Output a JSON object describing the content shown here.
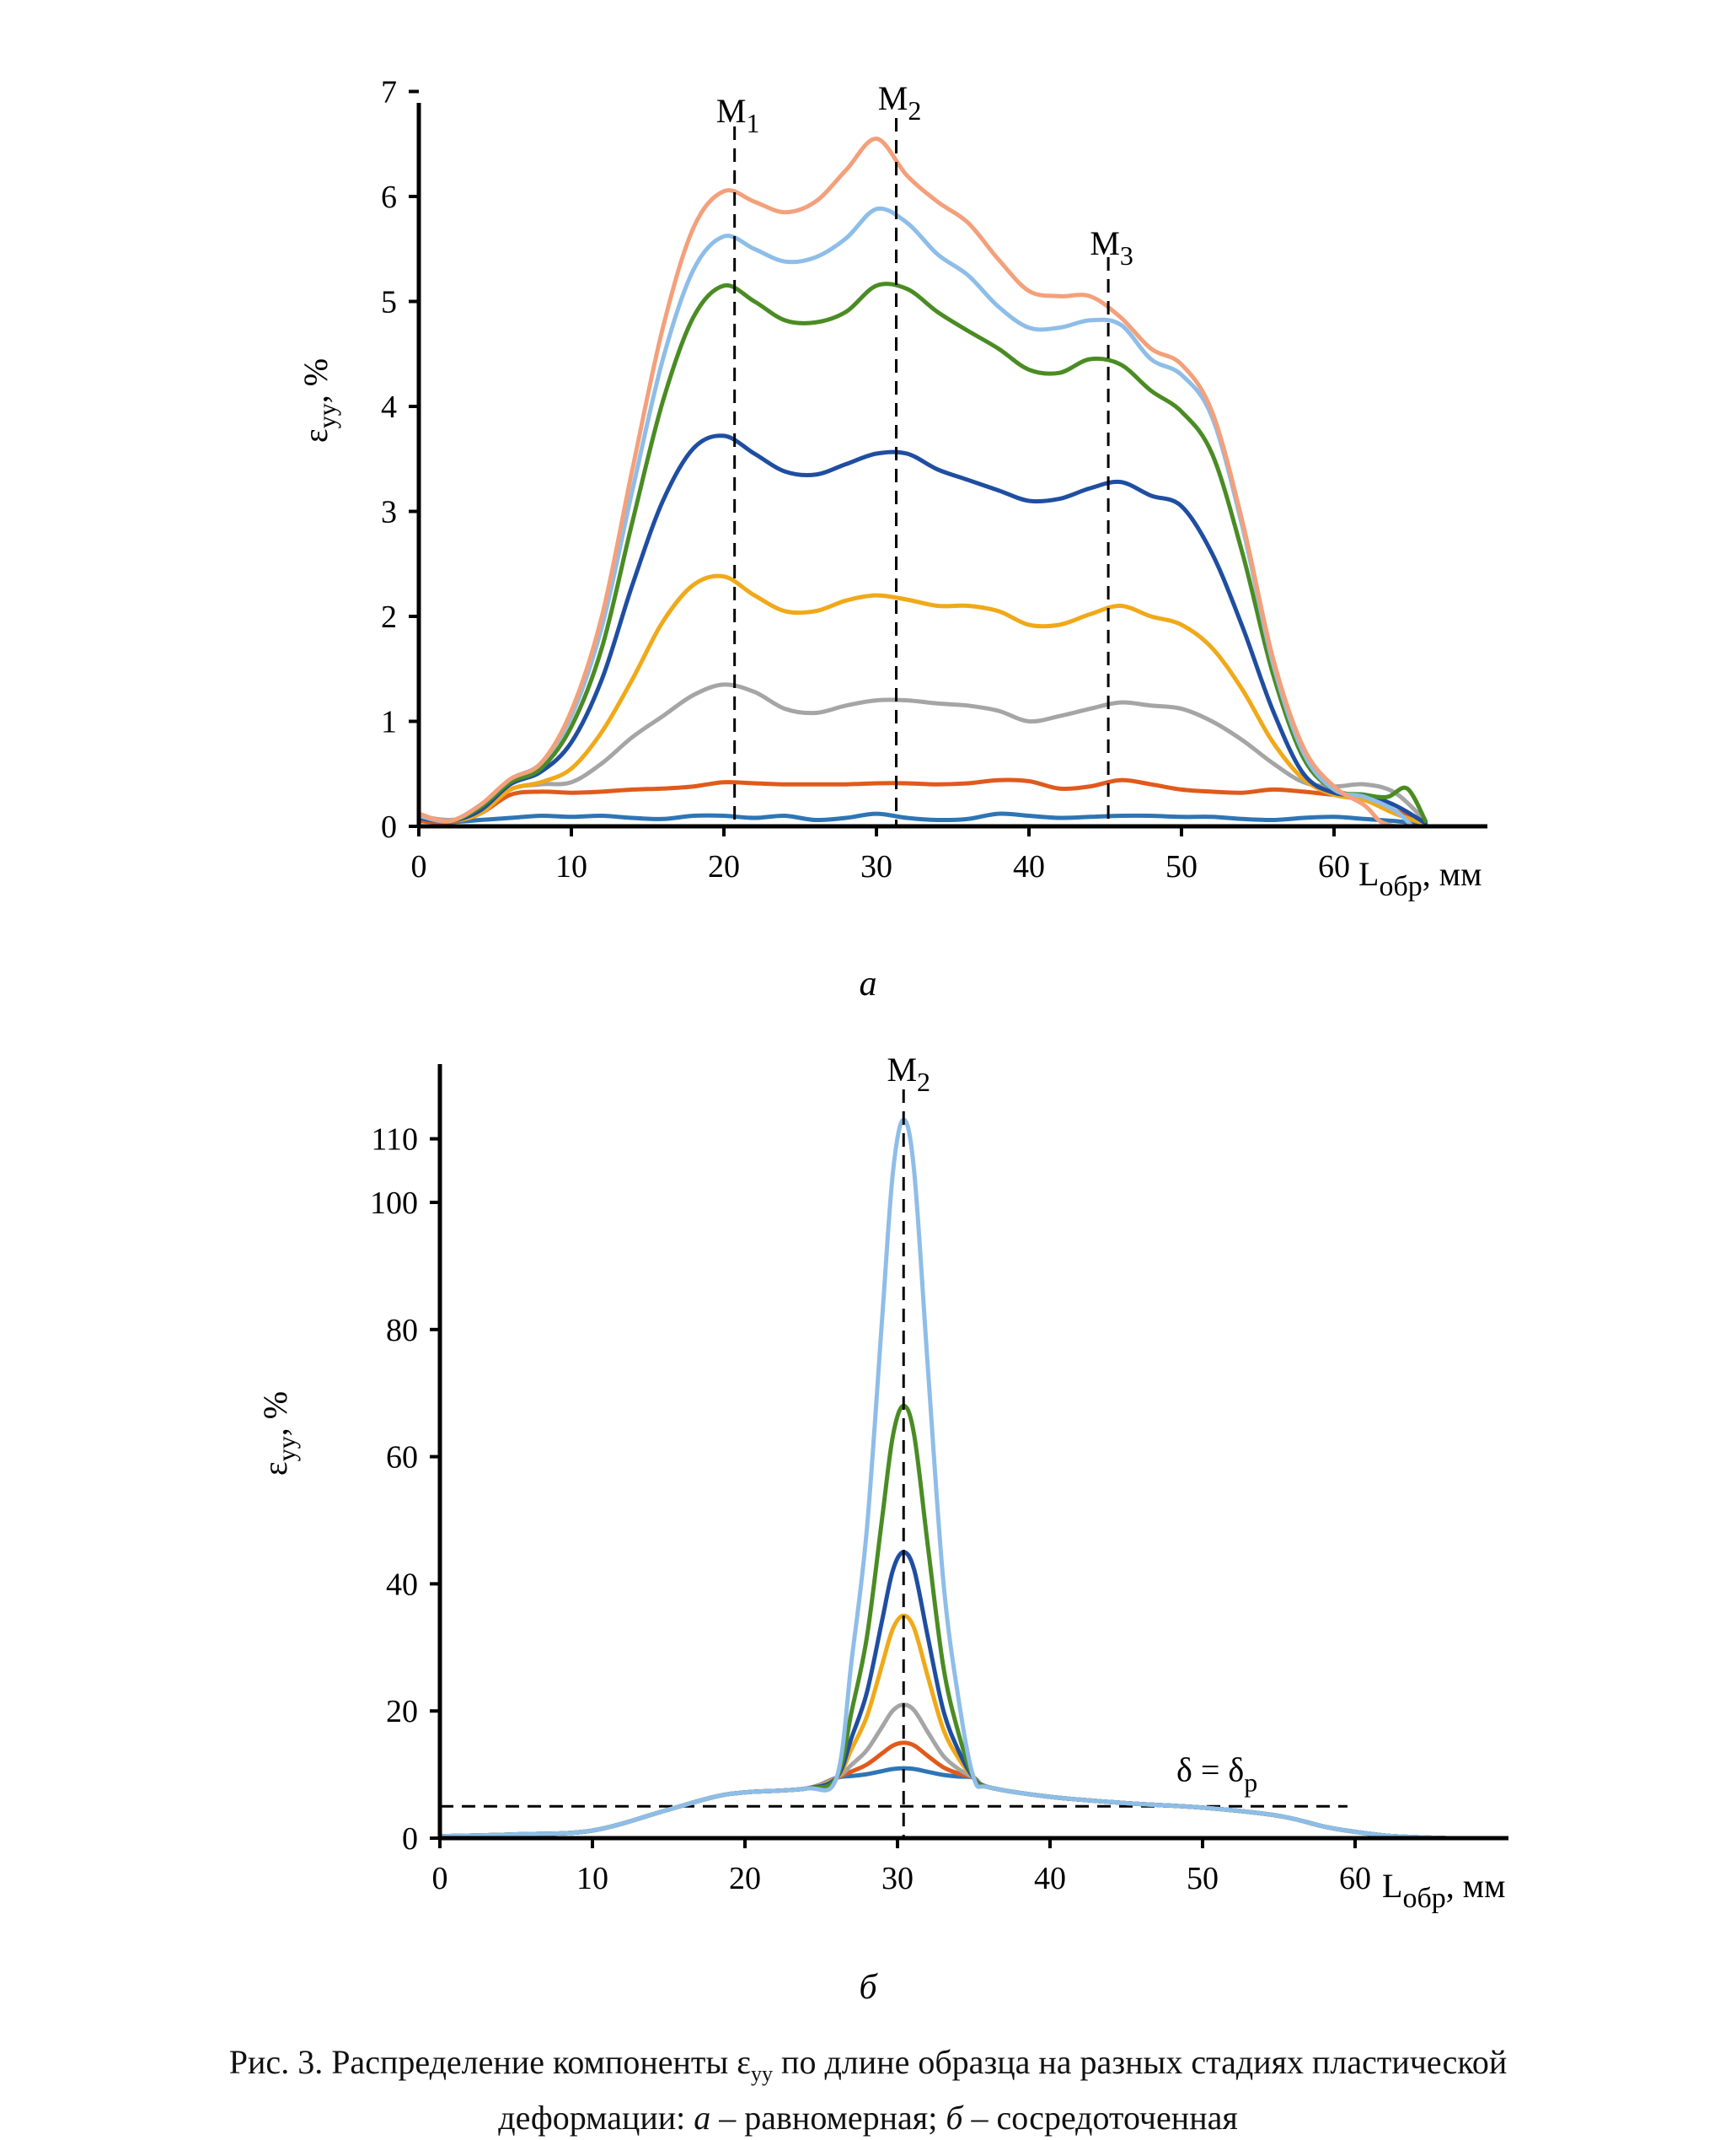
{
  "figure": {
    "panels": [
      "а",
      "б"
    ],
    "caption": {
      "part1": "Рис. 3. Распределение компоненты ε",
      "part1_sub": "yy",
      "part2": " по длине образца на разных стадиях пластической",
      "line2_a": "деформации: ",
      "line2_b": "а",
      "line2_c": " – равномерная; ",
      "line2_d": "б",
      "line2_e": " – сосредоточенная"
    }
  },
  "chart_data": [
    {
      "type": "line",
      "panel": "а",
      "xlabel": "L",
      "xlabel_sub": "обр",
      "xlabel_unit": ", мм",
      "ylabel": "ε",
      "ylabel_sub": "yy",
      "ylabel_unit": ", %",
      "xlim": [
        0,
        70
      ],
      "ylim": [
        0,
        7
      ],
      "xticks": [
        0,
        10,
        20,
        30,
        40,
        50,
        60
      ],
      "yticks": [
        0,
        1,
        2,
        3,
        4,
        5,
        6,
        7
      ],
      "grid": false,
      "legend": "none",
      "markers": [
        {
          "label": "M",
          "sub": "1",
          "x": 20.7
        },
        {
          "label": "M",
          "sub": "2",
          "x": 31.3
        },
        {
          "label": "M",
          "sub": "3",
          "x": 45.2
        }
      ],
      "series": [
        {
          "color": "#2e75b6",
          "x": [
            0,
            2,
            4,
            6,
            8,
            10,
            12,
            14,
            16,
            18,
            20,
            22,
            24,
            26,
            28,
            30,
            32,
            34,
            36,
            38,
            40,
            42,
            44,
            46,
            48,
            50,
            52,
            54,
            56,
            58,
            60,
            62,
            64,
            66
          ],
          "y": [
            0.05,
            0.04,
            0.06,
            0.08,
            0.1,
            0.09,
            0.1,
            0.08,
            0.07,
            0.1,
            0.1,
            0.08,
            0.1,
            0.06,
            0.08,
            0.12,
            0.08,
            0.06,
            0.07,
            0.12,
            0.1,
            0.08,
            0.09,
            0.1,
            0.1,
            0.09,
            0.09,
            0.07,
            0.06,
            0.08,
            0.09,
            0.07,
            0.05,
            0.02
          ]
        },
        {
          "color": "#e05a1c",
          "x": [
            0,
            2,
            4,
            6,
            8,
            10,
            12,
            14,
            16,
            18,
            20,
            22,
            24,
            26,
            28,
            30,
            32,
            34,
            36,
            38,
            40,
            42,
            44,
            46,
            48,
            50,
            52,
            54,
            56,
            58,
            60,
            62,
            64,
            66
          ],
          "y": [
            0.05,
            0.04,
            0.12,
            0.3,
            0.33,
            0.32,
            0.33,
            0.35,
            0.36,
            0.38,
            0.42,
            0.41,
            0.4,
            0.4,
            0.4,
            0.41,
            0.41,
            0.4,
            0.41,
            0.44,
            0.43,
            0.36,
            0.38,
            0.44,
            0.4,
            0.35,
            0.33,
            0.32,
            0.35,
            0.33,
            0.3,
            0.28,
            0.15,
            0.03
          ]
        },
        {
          "color": "#a5a5a5",
          "x": [
            0,
            2,
            4,
            6,
            8,
            10,
            12,
            14,
            16,
            18,
            20,
            22,
            24,
            26,
            28,
            30,
            32,
            34,
            36,
            38,
            40,
            42,
            44,
            46,
            48,
            50,
            52,
            54,
            56,
            58,
            60,
            62,
            64,
            66
          ],
          "y": [
            0.1,
            0.06,
            0.12,
            0.35,
            0.4,
            0.42,
            0.6,
            0.85,
            1.05,
            1.25,
            1.35,
            1.28,
            1.12,
            1.08,
            1.15,
            1.2,
            1.2,
            1.17,
            1.15,
            1.1,
            1.0,
            1.05,
            1.12,
            1.18,
            1.15,
            1.12,
            1.0,
            0.82,
            0.6,
            0.42,
            0.38,
            0.4,
            0.32,
            0.05
          ]
        },
        {
          "color": "#f0a918",
          "x": [
            0,
            2,
            4,
            6,
            8,
            10,
            12,
            14,
            16,
            18,
            20,
            22,
            24,
            26,
            28,
            30,
            32,
            34,
            36,
            38,
            40,
            42,
            44,
            46,
            48,
            50,
            52,
            54,
            56,
            58,
            60,
            62,
            64,
            66
          ],
          "y": [
            0.08,
            0.05,
            0.12,
            0.35,
            0.42,
            0.55,
            0.9,
            1.4,
            1.95,
            2.3,
            2.38,
            2.2,
            2.05,
            2.05,
            2.15,
            2.2,
            2.16,
            2.1,
            2.1,
            2.05,
            1.92,
            1.92,
            2.02,
            2.1,
            2.0,
            1.92,
            1.7,
            1.3,
            0.8,
            0.45,
            0.3,
            0.25,
            0.12,
            0.02
          ]
        },
        {
          "color": "#1f4ea1",
          "x": [
            0,
            2,
            4,
            6,
            8,
            10,
            12,
            14,
            16,
            18,
            20,
            22,
            24,
            26,
            28,
            30,
            32,
            34,
            36,
            38,
            40,
            42,
            44,
            46,
            48,
            50,
            52,
            54,
            56,
            58,
            60,
            62,
            64,
            66
          ],
          "y": [
            0.08,
            0.05,
            0.15,
            0.4,
            0.52,
            0.8,
            1.4,
            2.3,
            3.1,
            3.6,
            3.72,
            3.55,
            3.38,
            3.35,
            3.45,
            3.55,
            3.55,
            3.4,
            3.3,
            3.2,
            3.1,
            3.12,
            3.22,
            3.28,
            3.15,
            3.05,
            2.6,
            1.9,
            1.1,
            0.5,
            0.32,
            0.3,
            0.2,
            0.03
          ]
        },
        {
          "color": "#4a8c23",
          "x": [
            0,
            2,
            4,
            6,
            8,
            10,
            12,
            14,
            16,
            18,
            20,
            22,
            24,
            26,
            28,
            30,
            32,
            34,
            36,
            38,
            40,
            42,
            44,
            46,
            48,
            50,
            52,
            54,
            56,
            58,
            60,
            62,
            63.5,
            64.8,
            66
          ],
          "y": [
            0.1,
            0.05,
            0.18,
            0.42,
            0.55,
            0.95,
            1.7,
            2.9,
            4.05,
            4.85,
            5.15,
            5.0,
            4.82,
            4.8,
            4.9,
            5.15,
            5.12,
            4.9,
            4.72,
            4.55,
            4.35,
            4.32,
            4.45,
            4.4,
            4.15,
            3.95,
            3.55,
            2.6,
            1.45,
            0.65,
            0.35,
            0.3,
            0.28,
            0.36,
            0.05
          ]
        },
        {
          "color": "#8ebde8",
          "x": [
            0,
            2,
            4,
            6,
            8,
            10,
            12,
            14,
            16,
            18,
            20,
            22,
            24,
            26,
            28,
            30,
            32,
            34,
            36,
            38,
            40,
            42,
            44,
            46,
            48,
            50,
            52,
            54,
            56,
            58,
            60,
            62,
            64,
            65
          ],
          "y": [
            0.1,
            0.05,
            0.2,
            0.45,
            0.6,
            1.05,
            1.9,
            3.2,
            4.45,
            5.3,
            5.62,
            5.5,
            5.38,
            5.42,
            5.6,
            5.88,
            5.75,
            5.45,
            5.25,
            4.95,
            4.75,
            4.75,
            4.82,
            4.78,
            4.45,
            4.3,
            3.9,
            2.85,
            1.55,
            0.7,
            0.35,
            0.28,
            0.15,
            0.02
          ]
        },
        {
          "color": "#f3a07b",
          "x": [
            0,
            2,
            4,
            6,
            8,
            10,
            12,
            14,
            16,
            18,
            20,
            22,
            24,
            26,
            28,
            30,
            32,
            34,
            36,
            38,
            40,
            42,
            44,
            46,
            48,
            50,
            52,
            54,
            56,
            58,
            60,
            62,
            63,
            64
          ],
          "y": [
            0.12,
            0.05,
            0.2,
            0.45,
            0.6,
            1.1,
            2.0,
            3.4,
            4.75,
            5.7,
            6.05,
            5.95,
            5.85,
            5.95,
            6.25,
            6.55,
            6.2,
            5.95,
            5.75,
            5.4,
            5.1,
            5.05,
            5.05,
            4.85,
            4.55,
            4.4,
            3.95,
            2.9,
            1.6,
            0.75,
            0.38,
            0.2,
            0.05,
            0.0
          ]
        }
      ]
    },
    {
      "type": "line",
      "panel": "б",
      "xlabel": "L",
      "xlabel_sub": "обр",
      "xlabel_unit": ", мм",
      "ylabel": "ε",
      "ylabel_sub": "yy",
      "ylabel_unit": ", %",
      "xlim": [
        0,
        70
      ],
      "ylim": [
        0,
        120
      ],
      "xticks": [
        0,
        10,
        20,
        30,
        40,
        50,
        60
      ],
      "yticks": [
        0,
        20,
        40,
        60,
        80,
        100,
        110
      ],
      "grid": false,
      "legend": "none",
      "markers": [
        {
          "label": "M",
          "sub": "2",
          "x": 30.4
        }
      ],
      "threshold": {
        "label": "δ = δ",
        "sub": "p",
        "y": 5,
        "x_from": 0,
        "x_to": 59.5
      },
      "series": [
        {
          "color": "#2e75b6",
          "peak": 11
        },
        {
          "color": "#e05a1c",
          "peak": 15
        },
        {
          "color": "#a5a5a5",
          "peak": 21
        },
        {
          "color": "#f0a918",
          "peak": 35
        },
        {
          "color": "#1f4ea1",
          "peak": 45
        },
        {
          "color": "#4a8c23",
          "peak": 68
        },
        {
          "color": "#8ebde8",
          "peak": 113
        }
      ],
      "base_profile": {
        "x": [
          0,
          5,
          10,
          15,
          18,
          20,
          24,
          26,
          27,
          34,
          35,
          36,
          40,
          45,
          50,
          55,
          58,
          60,
          62,
          63.5,
          66
        ],
        "y": [
          0.3,
          0.6,
          1.2,
          4.5,
          6.5,
          7.2,
          7.8,
          9.5,
          10.5,
          10.5,
          9.5,
          8.0,
          6.5,
          5.5,
          4.8,
          3.5,
          1.8,
          1.0,
          0.4,
          0.2,
          0.0
        ]
      }
    }
  ]
}
